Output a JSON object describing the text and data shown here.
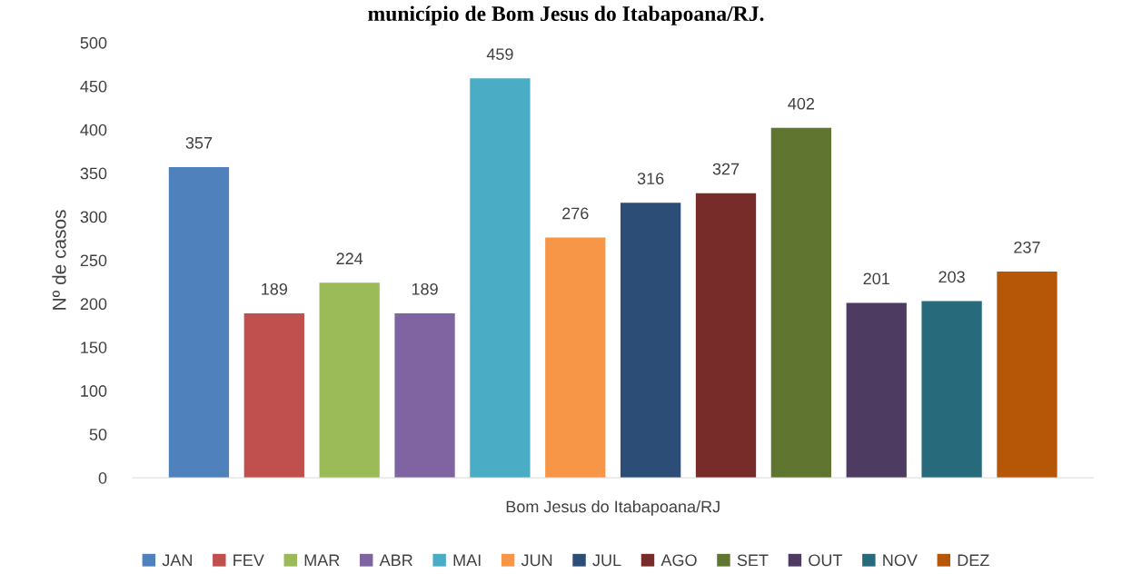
{
  "chart_data": {
    "type": "bar",
    "title": "município de Bom Jesus do Itabapoana/RJ.",
    "ylabel": "Nº de casos",
    "categories": [
      "Bom Jesus do Itabapoana/RJ"
    ],
    "series": [
      {
        "name": "JAN",
        "color": "#4f81bd",
        "values": [
          357
        ]
      },
      {
        "name": "FEV",
        "color": "#c0504d",
        "values": [
          189
        ]
      },
      {
        "name": "MAR",
        "color": "#9bbb59",
        "values": [
          224
        ]
      },
      {
        "name": "ABR",
        "color": "#8064a2",
        "values": [
          189
        ]
      },
      {
        "name": "MAI",
        "color": "#4bacc6",
        "values": [
          459
        ]
      },
      {
        "name": "JUN",
        "color": "#f79646",
        "values": [
          276
        ]
      },
      {
        "name": "JUL",
        "color": "#2c4d75",
        "values": [
          316
        ]
      },
      {
        "name": "AGO",
        "color": "#772c2a",
        "values": [
          327
        ]
      },
      {
        "name": "SET",
        "color": "#5f7530",
        "values": [
          402
        ]
      },
      {
        "name": "OUT",
        "color": "#4d3b62",
        "values": [
          201
        ]
      },
      {
        "name": "NOV",
        "color": "#276a7c",
        "values": [
          203
        ]
      },
      {
        "name": "DEZ",
        "color": "#b65708",
        "values": [
          237
        ]
      }
    ],
    "ylim": [
      0,
      500
    ],
    "yticks": [
      0,
      50,
      100,
      150,
      200,
      250,
      300,
      350,
      400,
      450,
      500
    ],
    "data_labels": true,
    "grid": false,
    "legend": "bottom"
  }
}
